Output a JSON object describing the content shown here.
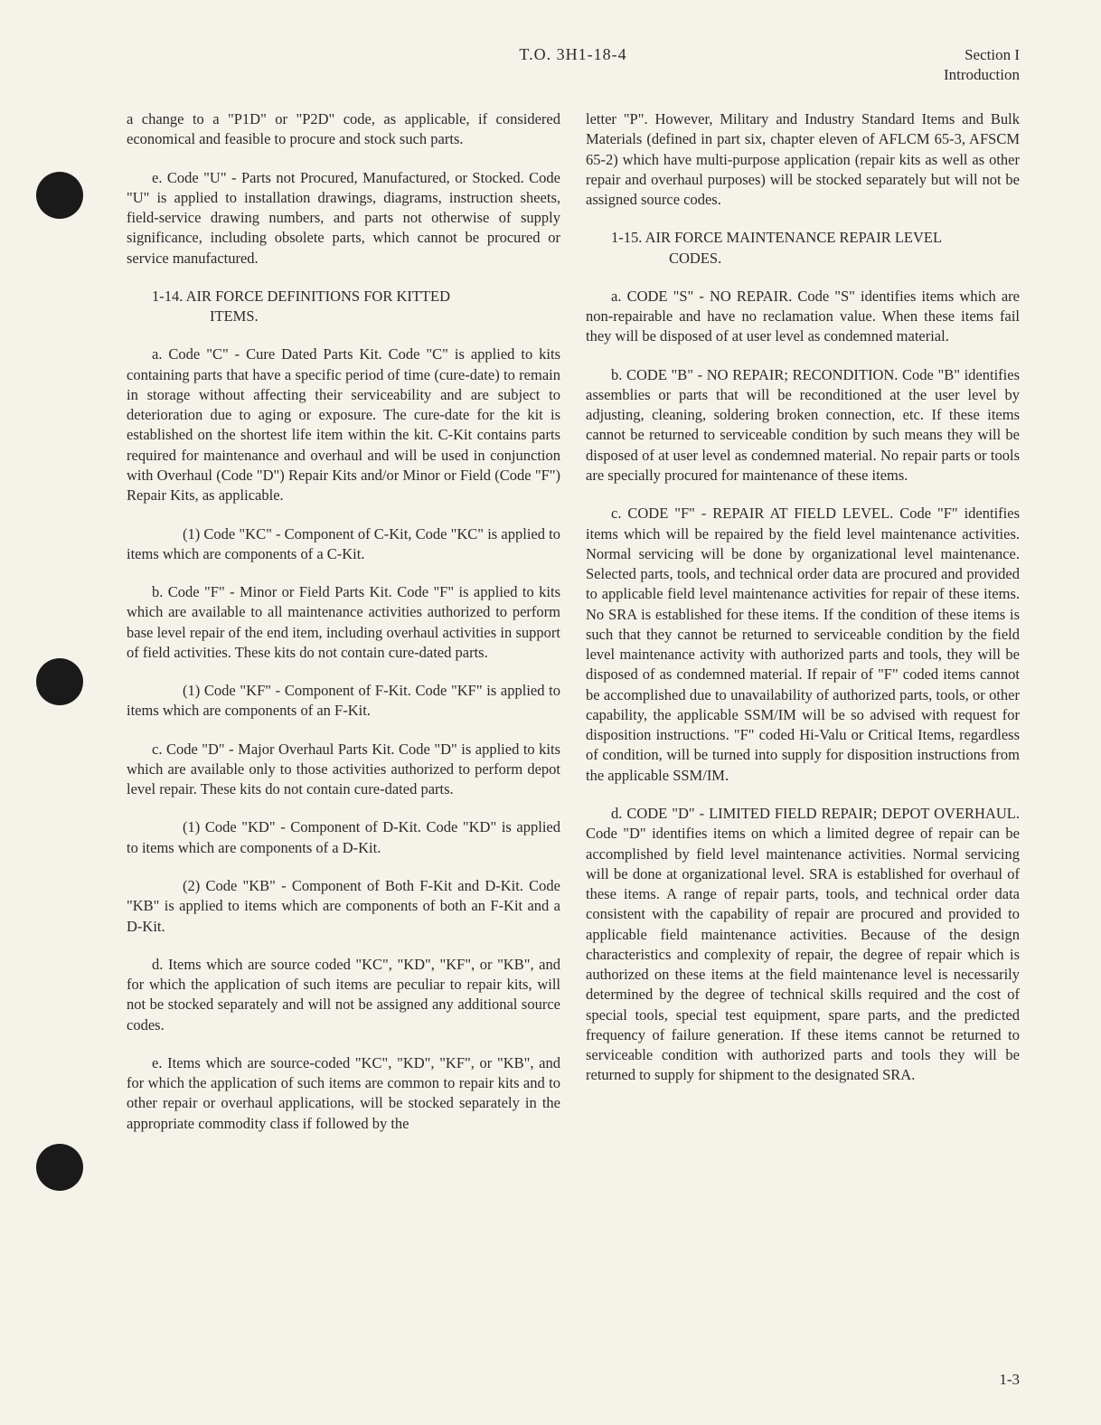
{
  "header": {
    "doc_number": "T.O. 3H1-18-4",
    "section": "Section I",
    "subsection": "Introduction"
  },
  "left": {
    "p0": "a change to a \"P1D\" or \"P2D\" code, as applicable, if considered economical and feasible to procure and stock such parts.",
    "p1": "e. Code \"U\" - Parts not Procured, Manufactured, or Stocked. Code \"U\" is applied to installation drawings, diagrams, instruction sheets, field-service drawing numbers, and parts not otherwise of supply significance, including obsolete parts, which cannot be procured or service manufactured.",
    "h1_num": "1-14.",
    "h1_title": "AIR FORCE DEFINITIONS FOR KITTED",
    "h1_cont": "ITEMS.",
    "p2": "a. Code \"C\" - Cure Dated Parts Kit. Code \"C\" is applied to kits containing parts that have a specific period of time (cure-date) to remain in storage without affecting their serviceability and are subject to deterioration due to aging or exposure. The cure-date for the kit is established on the shortest life item within the kit. C-Kit contains parts required for maintenance and overhaul and will be used in conjunction with Overhaul (Code \"D\") Repair Kits and/or Minor or Field (Code \"F\") Repair Kits, as applicable.",
    "p3": "(1) Code \"KC\" - Component of C-Kit, Code \"KC\" is applied to items which are components of a C-Kit.",
    "p4": "b. Code \"F\" - Minor or Field Parts Kit. Code \"F\" is applied to kits which are available to all maintenance activities authorized to perform base level repair of the end item, including overhaul activities in support of field activities. These kits do not contain cure-dated parts.",
    "p5": "(1) Code \"KF\" - Component of F-Kit. Code \"KF\" is applied to items which are components of an F-Kit.",
    "p6": "c. Code \"D\" - Major Overhaul Parts Kit. Code \"D\" is applied to kits which are available only to those activities authorized to perform depot level repair. These kits do not contain cure-dated parts.",
    "p7": "(1) Code \"KD\" - Component of D-Kit. Code \"KD\" is applied to items which are components of a D-Kit.",
    "p8": "(2) Code \"KB\" - Component of Both F-Kit and D-Kit. Code \"KB\" is applied to items which are components of both an F-Kit and a D-Kit.",
    "p9": "d. Items which are source coded \"KC\", \"KD\", \"KF\", or \"KB\", and for which the application of such items are peculiar to repair kits, will not be stocked separately and will not be assigned any additional source codes.",
    "p10": "e. Items which are source-coded \"KC\", \"KD\", \"KF\", or \"KB\", and for which the application of such items are common to repair kits and to other repair or overhaul applications, will be stocked separately in the appropriate commodity class if followed by the"
  },
  "right": {
    "p0": "letter \"P\". However, Military and Industry Standard Items and Bulk Materials (defined in part six, chapter eleven of AFLCM 65-3, AFSCM 65-2) which have multi-purpose application (repair kits as well as other repair and overhaul purposes) will be stocked separately but will not be assigned source codes.",
    "h1_num": "1-15.",
    "h1_title": "AIR FORCE MAINTENANCE REPAIR LEVEL",
    "h1_cont": "CODES.",
    "p1": "a. CODE \"S\" - NO REPAIR. Code \"S\" identifies items which are non-repairable and have no reclamation value. When these items fail they will be disposed of at user level as condemned material.",
    "p2": "b. CODE \"B\" - NO REPAIR; RECONDITION. Code \"B\" identifies assemblies or parts that will be reconditioned at the user level by adjusting, cleaning, soldering broken connection, etc. If these items cannot be returned to serviceable condition by such means they will be disposed of at user level as condemned material. No repair parts or tools are specially procured for maintenance of these items.",
    "p3": "c. CODE \"F\" - REPAIR AT FIELD LEVEL. Code \"F\" identifies items which will be repaired by the field level maintenance activities. Normal servicing will be done by organizational level maintenance. Selected parts, tools, and technical order data are procured and provided to applicable field level maintenance activities for repair of these items. No SRA is established for these items. If the condition of these items is such that they cannot be returned to serviceable condition by the field level maintenance activity with authorized parts and tools, they will be disposed of as condemned material. If repair of \"F\" coded items cannot be accomplished due to unavailability of authorized parts, tools, or other capability, the applicable SSM/IM will be so advised with request for disposition instructions. \"F\" coded Hi-Valu or Critical Items, regardless of condition, will be turned into supply for disposition instructions from the applicable SSM/IM.",
    "p4": "d. CODE \"D\" - LIMITED FIELD REPAIR; DEPOT OVERHAUL. Code \"D\" identifies items on which a limited degree of repair can be accomplished by field level maintenance activities. Normal servicing will be done at organizational level. SRA is established for overhaul of these items. A range of repair parts, tools, and technical order data consistent with the capability of repair are procured and provided to applicable field maintenance activities. Because of the design characteristics and complexity of repair, the degree of repair which is authorized on these items at the field maintenance level is necessarily determined by the degree of technical skills required and the cost of special tools, special test equipment, spare parts, and the predicted frequency of failure generation. If these items cannot be returned to serviceable condition with authorized parts and tools they will be returned to supply for shipment to the designated SRA."
  },
  "page_number": "1-3"
}
